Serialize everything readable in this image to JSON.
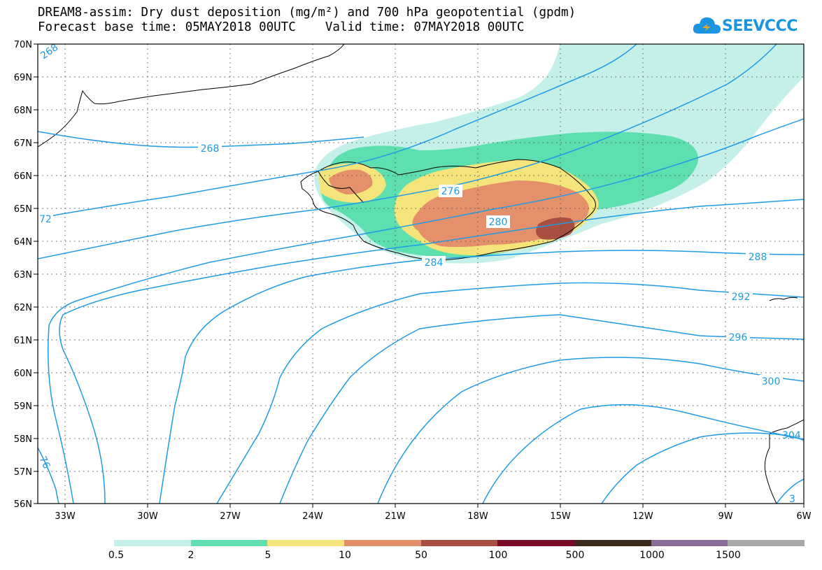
{
  "header": {
    "title_line1": "DREAM8-assim: Dry dust deposition (mg/m²) and 700 hPa geopotential (gpdm)",
    "title_line2": "Forecast base time: 05MAY2018 00UTC    Valid time: 07MAY2018 00UTC"
  },
  "logo": {
    "text": "SEEVCCC"
  },
  "map": {
    "lat_labels": [
      "70N",
      "69N",
      "68N",
      "67N",
      "66N",
      "65N",
      "64N",
      "63N",
      "62N",
      "61N",
      "60N",
      "59N",
      "58N",
      "57N",
      "56N"
    ],
    "lon_labels": [
      "33W",
      "30W",
      "27W",
      "24W",
      "21W",
      "18W",
      "15W",
      "12W",
      "9W",
      "6W"
    ],
    "contour_labels": [
      "268",
      "268",
      "72",
      "276",
      "280",
      "284",
      "288",
      "292",
      "296",
      "300",
      "76",
      "304",
      "3"
    ],
    "colors": {
      "contour": "#1f9be6",
      "coast": "#000000",
      "deposition_0_5": "#c5f0ea",
      "deposition_2": "#5ddfb0",
      "deposition_5": "#f5e47a",
      "deposition_10": "#e4906a",
      "deposition_50": "#a94f42"
    }
  },
  "legend": {
    "labels": [
      "0.5",
      "2",
      "5",
      "10",
      "50",
      "100",
      "500",
      "1000",
      "1500"
    ],
    "colors": [
      "#c5f0ea",
      "#5ddfb0",
      "#f5e47a",
      "#e4906a",
      "#a94f42",
      "#7a0a2a",
      "#3b2a1c",
      "#8a6a98",
      "#a8a8a8"
    ]
  }
}
